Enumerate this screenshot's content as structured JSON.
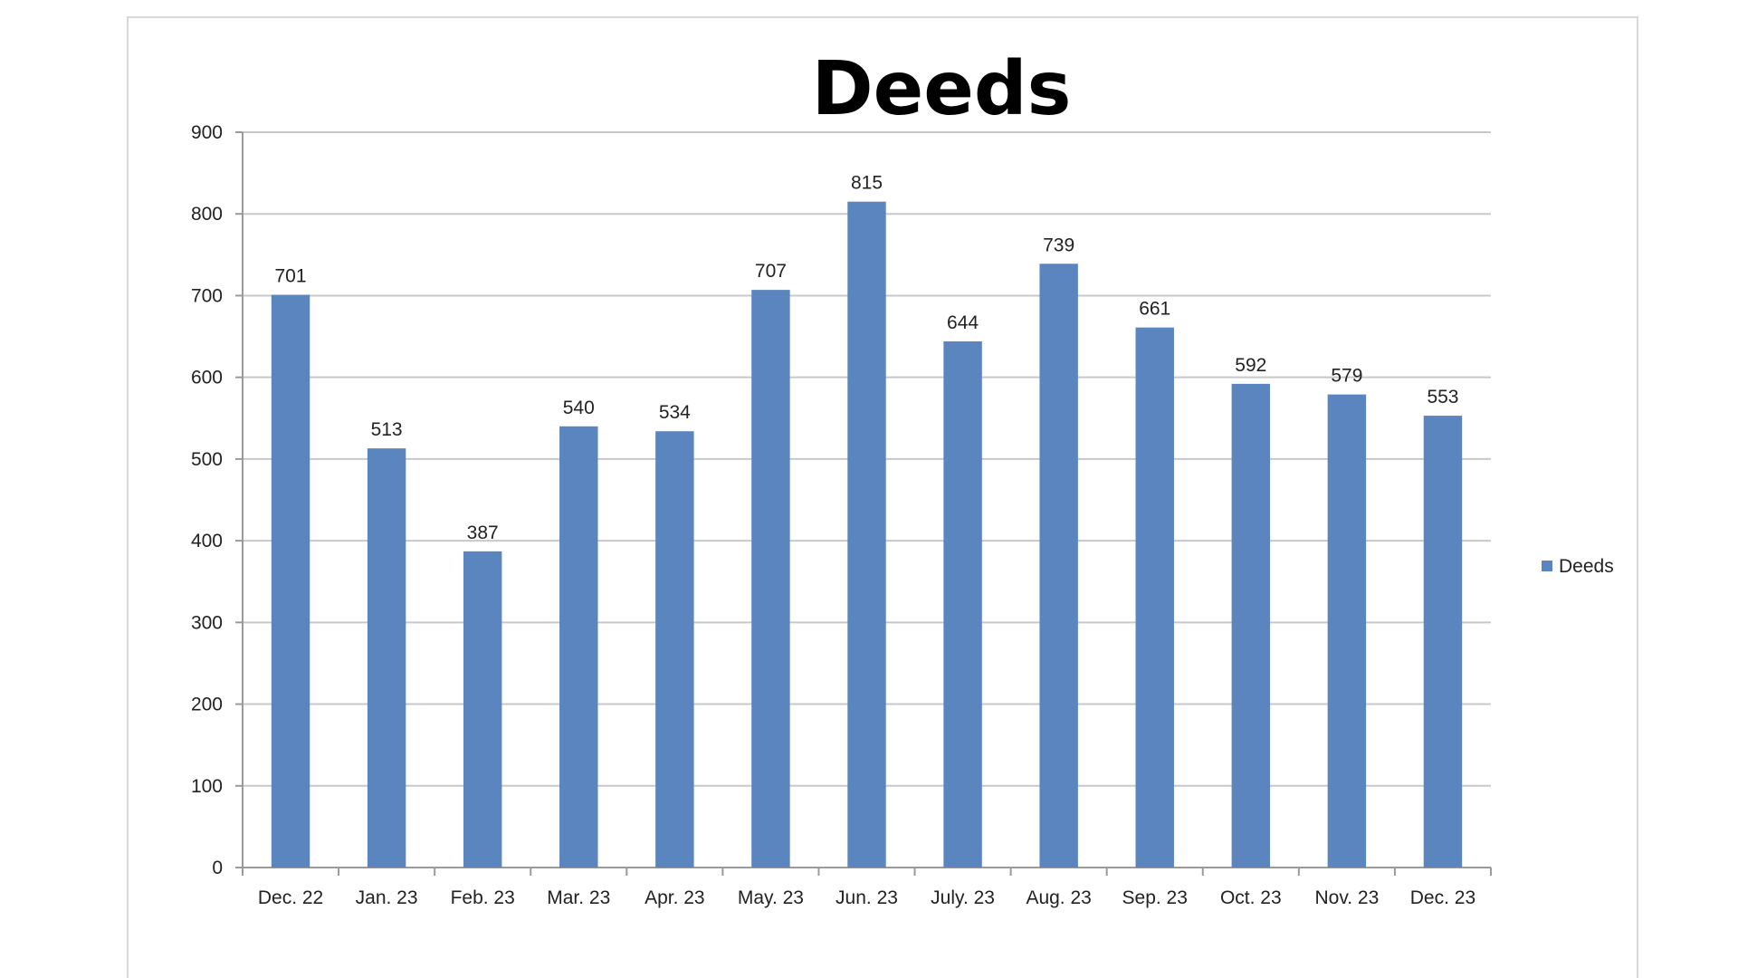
{
  "chart_data": {
    "type": "bar",
    "title": "Deeds",
    "categories": [
      "Dec. 22",
      "Jan. 23",
      "Feb. 23",
      "Mar. 23",
      "Apr. 23",
      "May. 23",
      "Jun. 23",
      "July. 23",
      "Aug. 23",
      "Sep. 23",
      "Oct. 23",
      "Nov. 23",
      "Dec. 23"
    ],
    "series": [
      {
        "name": "Deeds",
        "values": [
          701,
          513,
          387,
          540,
          534,
          707,
          815,
          644,
          739,
          661,
          592,
          579,
          553
        ],
        "color": "#5B85BE"
      }
    ],
    "ylim": [
      0,
      900
    ],
    "yticks": [
      0,
      100,
      200,
      300,
      400,
      500,
      600,
      700,
      800,
      900
    ],
    "xlabel": "",
    "ylabel": "",
    "grid": true,
    "legend": "right",
    "data_labels": true,
    "gridline_color": "#c8c8c8"
  }
}
